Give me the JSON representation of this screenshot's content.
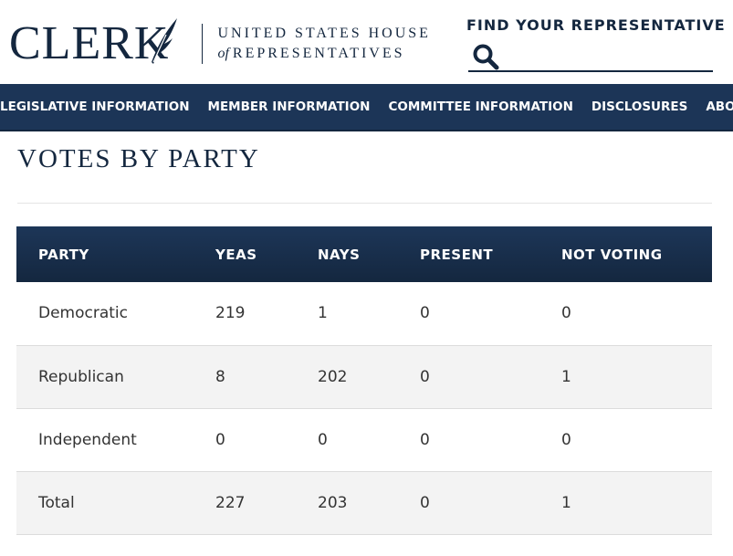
{
  "header": {
    "logo_word": "CLERK",
    "logo_line1": "UNITED STATES HOUSE",
    "logo_of": "of",
    "logo_line2": "REPRESENTATIVES",
    "find_label": "FIND YOUR REPRESENTATIVE",
    "search_value": "",
    "search_icon": "search-icon",
    "colors": {
      "navy": "#14273f",
      "nav_bg": "#1c3557"
    }
  },
  "nav": {
    "items": [
      "LEGISLATIVE INFORMATION",
      "MEMBER INFORMATION",
      "COMMITTEE INFORMATION",
      "DISCLOSURES",
      "ABOUT THE CLERK"
    ]
  },
  "main": {
    "title": "VOTES BY PARTY",
    "table": {
      "headers": [
        "PARTY",
        "YEAS",
        "NAYS",
        "PRESENT",
        "NOT VOTING"
      ],
      "rows": [
        [
          "Democratic",
          "219",
          "1",
          "0",
          "0"
        ],
        [
          "Republican",
          "8",
          "202",
          "0",
          "1"
        ],
        [
          "Independent",
          "0",
          "0",
          "0",
          "0"
        ],
        [
          "Total",
          "227",
          "203",
          "0",
          "1"
        ]
      ]
    }
  }
}
